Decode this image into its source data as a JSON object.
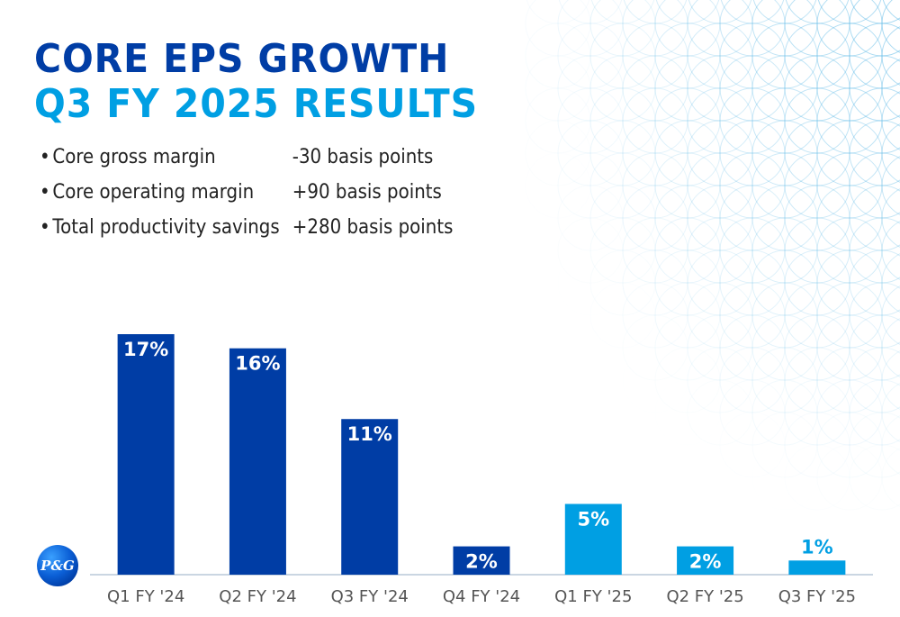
{
  "title_line1": "CORE EPS GROWTH",
  "title_line2": "Q3 FY 2025 RESULTS",
  "bullets": [
    {
      "label": "Core gross margin",
      "value": "-30 basis points"
    },
    {
      "label": "Core operating margin",
      "value": "+90 basis points"
    },
    {
      "label": "Total productivity savings",
      "value": "+280 basis points"
    }
  ],
  "logo_text": "P&G",
  "colors": {
    "fy24": "#003DA5",
    "fy25": "#009FE3",
    "bg": "#ffffff"
  },
  "chart_data": {
    "type": "bar",
    "categories": [
      "Q1 FY '24",
      "Q2 FY '24",
      "Q3 FY '24",
      "Q4 FY '24",
      "Q1 FY '25",
      "Q2 FY '25",
      "Q3 FY '25"
    ],
    "values": [
      17,
      16,
      11,
      2,
      5,
      2,
      1
    ],
    "labels": [
      "17%",
      "16%",
      "11%",
      "2%",
      "5%",
      "2%",
      "1%"
    ],
    "fiscal_year_colors": [
      "#003DA5",
      "#003DA5",
      "#003DA5",
      "#003DA5",
      "#009FE3",
      "#009FE3",
      "#009FE3"
    ],
    "ylim": [
      0,
      17
    ],
    "grid": false,
    "legend": "none"
  }
}
